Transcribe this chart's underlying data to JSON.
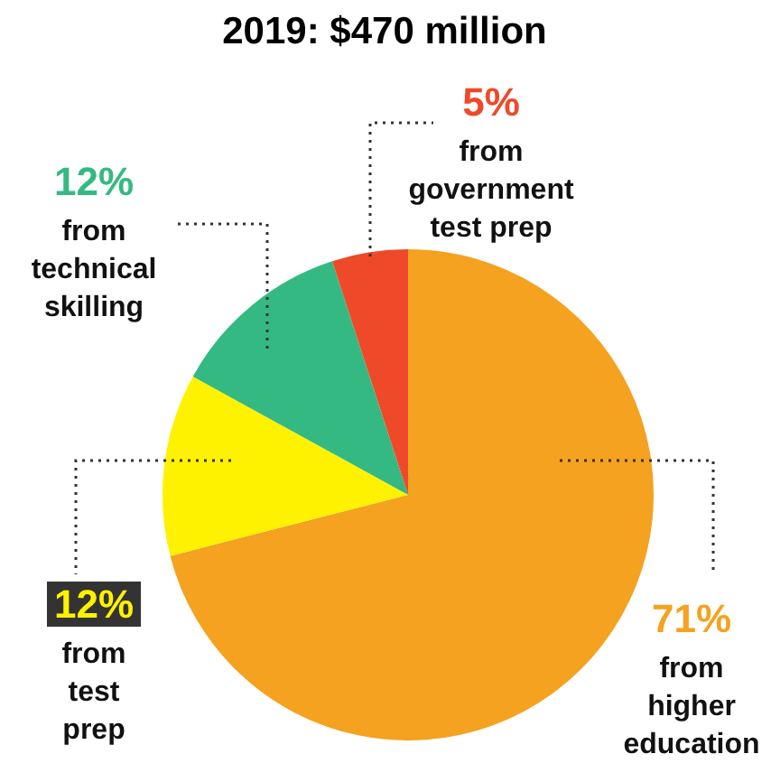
{
  "chart_data": {
    "type": "pie",
    "title": "2019: $470 million",
    "categories": [
      "from higher education",
      "from test prep",
      "from technical skilling",
      "from government test prep"
    ],
    "values": [
      71,
      12,
      12,
      5
    ],
    "colors": [
      "#f4a21f",
      "#fff200",
      "#35b982",
      "#ee4a2a"
    ],
    "value_labels": [
      "71%",
      "12%",
      "12%",
      "5%"
    ],
    "legend": false
  }
}
